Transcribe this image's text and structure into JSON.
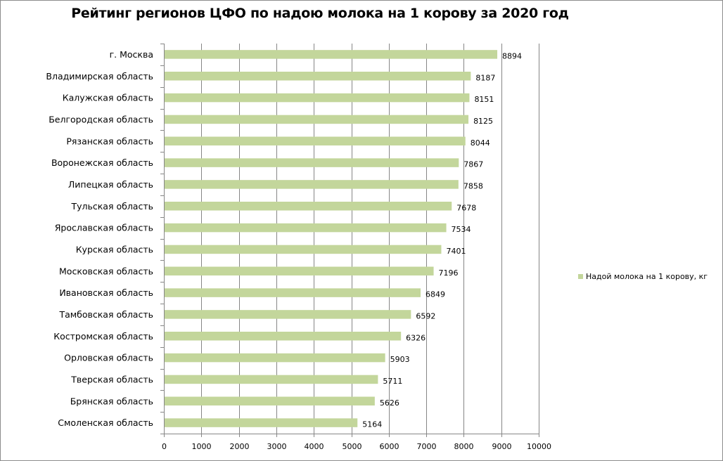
{
  "chart_data": {
    "type": "bar",
    "orientation": "horizontal",
    "title": "Рейтинг регионов ЦФО по надою молока на 1 корову за 2020 год",
    "xlabel": "",
    "ylabel": "",
    "categories": [
      "г. Москва",
      "Владимирская область",
      "Калужская область",
      "Белгородская область",
      "Рязанская область",
      "Воронежская область",
      "Липецкая область",
      "Тульская область",
      "Ярославская область",
      "Курская область",
      "Московская область",
      "Ивановская область",
      "Тамбовская область",
      "Костромская область",
      "Орловская область",
      "Тверская область",
      "Брянская область",
      "Смоленская область"
    ],
    "series": [
      {
        "name": "Надой молока на 1 корову, кг",
        "color": "#c3d69b",
        "values": [
          8894,
          8187,
          8151,
          8125,
          8044,
          7867,
          7858,
          7678,
          7534,
          7401,
          7196,
          6849,
          6592,
          6326,
          5903,
          5711,
          5626,
          5164
        ]
      }
    ],
    "xlim": [
      0,
      10000
    ],
    "xticks": [
      "0",
      "1000",
      "2000",
      "3000",
      "4000",
      "5000",
      "6000",
      "7000",
      "8000",
      "9000",
      "10000"
    ],
    "grid": "vertical major gridlines",
    "legend_position": "right",
    "data_labels": true
  }
}
